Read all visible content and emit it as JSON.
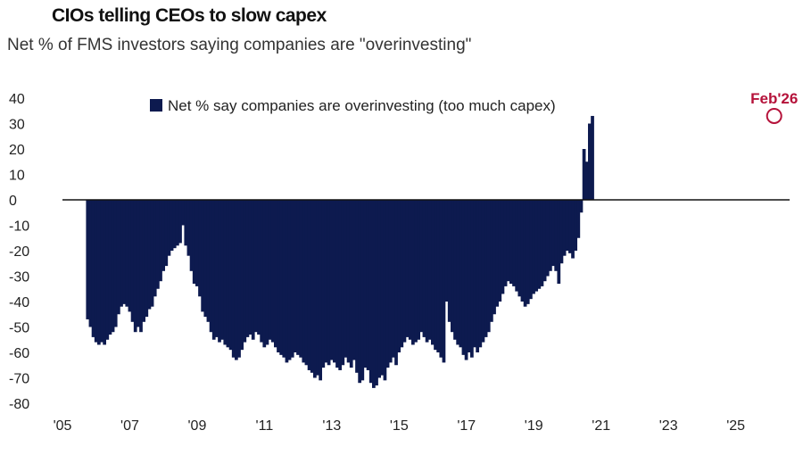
{
  "header": {
    "title": "CIOs telling CEOs to slow capex",
    "subtitle": "Net % of FMS investors saying companies are \"overinvesting\""
  },
  "chart_data": {
    "type": "bar",
    "title": "CIOs telling CEOs to slow capex",
    "subtitle": "Net % of FMS investors saying companies are \"overinvesting\"",
    "xlabel": "",
    "ylabel": "",
    "ylim": [
      -80,
      40
    ],
    "y_ticks": [
      40,
      30,
      20,
      10,
      0,
      -10,
      -20,
      -30,
      -40,
      -50,
      -60,
      -70,
      -80
    ],
    "x_range": [
      2005.0,
      2026.6
    ],
    "x_ticks": [
      {
        "label": "'05",
        "year": 2005
      },
      {
        "label": "'07",
        "year": 2007
      },
      {
        "label": "'09",
        "year": 2009
      },
      {
        "label": "'11",
        "year": 2011
      },
      {
        "label": "'13",
        "year": 2013
      },
      {
        "label": "'15",
        "year": 2015
      },
      {
        "label": "'17",
        "year": 2017
      },
      {
        "label": "'19",
        "year": 2019
      },
      {
        "label": "'21",
        "year": 2021
      },
      {
        "label": "'23",
        "year": 2023
      },
      {
        "label": "'25",
        "year": 2025
      }
    ],
    "legend": {
      "label": "Net % say companies are overinvesting (too much capex)",
      "color": "#0d1a4f",
      "position": "top-left"
    },
    "annotation": {
      "label": "Feb'26",
      "color": "#b5123a",
      "year": 2026.1,
      "value": 33
    },
    "bar_color": "#0d1a4f",
    "series": [
      {
        "name": "Net % say companies are overinvesting (too much capex)",
        "start_year": 2005.7,
        "step_years": 0.0833,
        "values": [
          -47,
          -50,
          -54,
          -56,
          -57,
          -56,
          -57,
          -55,
          -53,
          -52,
          -50,
          -45,
          -42,
          -41,
          -42,
          -44,
          -48,
          -52,
          -50,
          -52,
          -48,
          -46,
          -43,
          -42,
          -38,
          -35,
          -32,
          -28,
          -26,
          -22,
          -20,
          -19,
          -18,
          -17,
          -10,
          -18,
          -22,
          -28,
          -33,
          -34,
          -38,
          -44,
          -46,
          -48,
          -52,
          -55,
          -54,
          -56,
          -55,
          -57,
          -58,
          -59,
          -62,
          -63,
          -62,
          -59,
          -56,
          -54,
          -53,
          -55,
          -52,
          -53,
          -56,
          -58,
          -57,
          -55,
          -56,
          -58,
          -60,
          -61,
          -62,
          -64,
          -63,
          -62,
          -60,
          -61,
          -62,
          -64,
          -65,
          -67,
          -68,
          -70,
          -69,
          -71,
          -66,
          -64,
          -65,
          -63,
          -64,
          -66,
          -67,
          -65,
          -62,
          -64,
          -66,
          -63,
          -68,
          -72,
          -71,
          -66,
          -67,
          -72,
          -74,
          -73,
          -70,
          -69,
          -71,
          -66,
          -64,
          -62,
          -65,
          -60,
          -58,
          -56,
          -54,
          -55,
          -57,
          -56,
          -55,
          -52,
          -54,
          -56,
          -55,
          -57,
          -59,
          -60,
          -62,
          -64,
          -40,
          -48,
          -52,
          -55,
          -57,
          -58,
          -61,
          -63,
          -60,
          -62,
          -58,
          -60,
          -58,
          -56,
          -54,
          -52,
          -48,
          -45,
          -42,
          -40,
          -37,
          -34,
          -32,
          -33,
          -34,
          -36,
          -38,
          -40,
          -42,
          -41,
          -39,
          -37,
          -36,
          -35,
          -34,
          -32,
          -30,
          -28,
          -26,
          -28,
          -33,
          -25,
          -22,
          -20,
          -21,
          -23,
          -20,
          -15,
          -5,
          20,
          15,
          30,
          33
        ]
      }
    ]
  }
}
